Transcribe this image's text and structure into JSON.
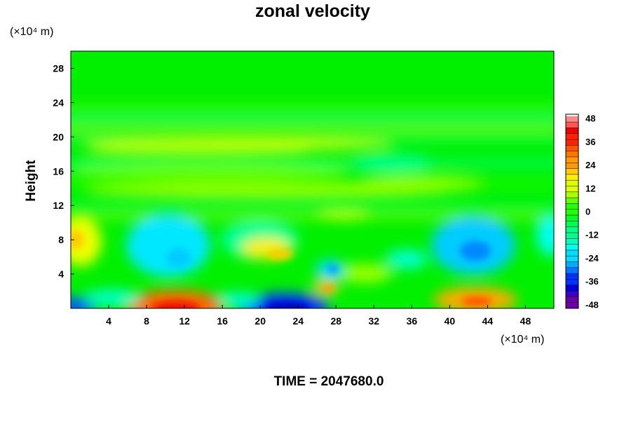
{
  "chart_data": {
    "type": "heatmap",
    "title": "zonal velocity",
    "xlabel": "",
    "ylabel": "Height",
    "x_unit": "(×10⁴ m)",
    "y_unit": "(×10⁴ m)",
    "xlim": [
      0,
      51
    ],
    "ylim": [
      0,
      30
    ],
    "x_ticks": [
      4,
      8,
      12,
      16,
      20,
      24,
      28,
      32,
      36,
      40,
      44,
      48
    ],
    "y_ticks": [
      4,
      8,
      12,
      16,
      20,
      24,
      28
    ],
    "colorbar": {
      "range": [
        -50,
        50
      ],
      "interval": 3,
      "ticks": [
        -48,
        -36,
        -24,
        -12,
        0,
        12,
        24,
        36,
        48
      ],
      "colors": [
        "#6a00a8",
        "#3a00c8",
        "#0000dc",
        "#0033ff",
        "#0077ff",
        "#00aaff",
        "#00dcff",
        "#00ffee",
        "#00ffbb",
        "#00ff88",
        "#00ff55",
        "#00ff22",
        "#22ff00",
        "#66ff00",
        "#aaff00",
        "#ddff00",
        "#ffee00",
        "#ffcc00",
        "#ff9900",
        "#ff7700",
        "#ff5500",
        "#ff2200",
        "#ee0000",
        "#ff5555",
        "#ff8888"
      ]
    },
    "features": [
      {
        "x": 11.5,
        "y": 0.3,
        "value": 38
      },
      {
        "x": 23,
        "y": 0.3,
        "value": -40
      },
      {
        "x": 0,
        "y": 0.3,
        "value": -28
      },
      {
        "x": 42.5,
        "y": 1.0,
        "value": 32
      },
      {
        "x": 43,
        "y": 6.8,
        "value": -24
      },
      {
        "x": 12.2,
        "y": 6.0,
        "value": -16
      },
      {
        "x": 27.5,
        "y": 4.5,
        "value": -22
      },
      {
        "x": 22,
        "y": 6.8,
        "value": 18
      },
      {
        "x": 27,
        "y": 2.5,
        "value": 18
      },
      {
        "x": 0.8,
        "y": 8.0,
        "value": 16
      },
      {
        "x": 36,
        "y": 5.5,
        "value": -14
      },
      {
        "x": 50.5,
        "y": 8.0,
        "value": -12
      },
      {
        "x": 33,
        "y": 2.8,
        "value": 10
      },
      {
        "x": 18,
        "y": 19.0,
        "value": 12
      },
      {
        "x": 29,
        "y": 10.5,
        "value": 12
      }
    ]
  },
  "footer": {
    "time_label": "TIME = 2047680.0"
  }
}
